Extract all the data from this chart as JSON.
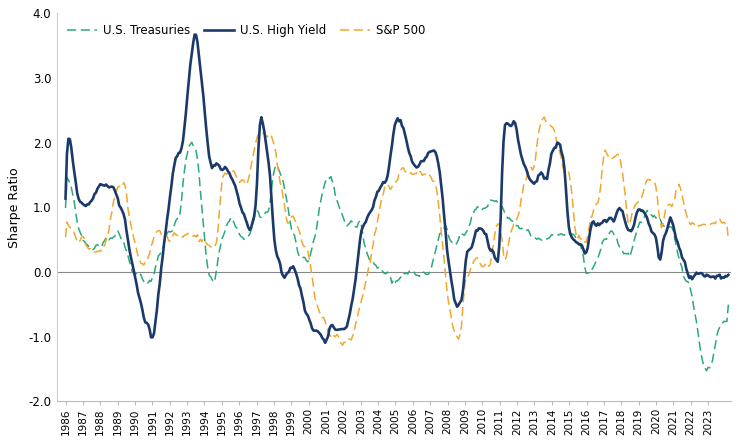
{
  "title": "",
  "ylabel": "Sharpe Ratio",
  "ylim": [
    -2.0,
    4.0
  ],
  "yticks": [
    -2.0,
    -1.0,
    0.0,
    1.0,
    2.0,
    3.0,
    4.0
  ],
  "legend_labels": [
    "U.S. Treasuries",
    "U.S. High Yield",
    "S&P 500"
  ],
  "colors": {
    "treasuries": "#2aaa7a",
    "high_yield": "#1b3a6b",
    "sp500": "#f0a830"
  },
  "background_color": "#ffffff",
  "zero_line_color": "#888888",
  "figsize": [
    7.39,
    4.43
  ],
  "dpi": 100
}
